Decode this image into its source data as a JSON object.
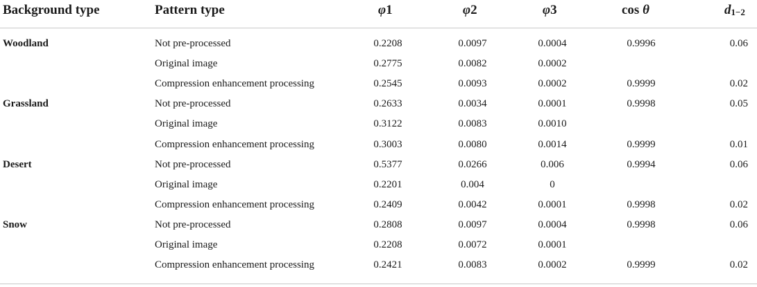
{
  "headers": {
    "background_type": "Background type",
    "pattern_type": "Pattern type",
    "phi_symbol": "φ",
    "phi1_index": "1",
    "phi2_index": "2",
    "phi3_index": "3",
    "cos_text": "cos",
    "theta_symbol": "θ",
    "d_symbol": "d",
    "d_subscript": "1−2"
  },
  "rows": [
    {
      "background": "Woodland",
      "pattern": "Not pre-processed",
      "phi1": "0.2208",
      "phi2": "0.0097",
      "phi3": "0.0004",
      "cos_theta": "0.9996",
      "d12": "0.06"
    },
    {
      "background": "",
      "pattern": "Original image",
      "phi1": "0.2775",
      "phi2": "0.0082",
      "phi3": "0.0002",
      "cos_theta": "",
      "d12": ""
    },
    {
      "background": "",
      "pattern": "Compression enhancement processing",
      "phi1": "0.2545",
      "phi2": "0.0093",
      "phi3": "0.0002",
      "cos_theta": "0.9999",
      "d12": "0.02"
    },
    {
      "background": "Grassland",
      "pattern": "Not pre-processed",
      "phi1": "0.2633",
      "phi2": "0.0034",
      "phi3": "0.0001",
      "cos_theta": "0.9998",
      "d12": "0.05"
    },
    {
      "background": "",
      "pattern": "Original image",
      "phi1": "0.3122",
      "phi2": "0.0083",
      "phi3": "0.0010",
      "cos_theta": "",
      "d12": ""
    },
    {
      "background": "",
      "pattern": "Compression enhancement processing",
      "phi1": "0.3003",
      "phi2": "0.0080",
      "phi3": "0.0014",
      "cos_theta": "0.9999",
      "d12": "0.01"
    },
    {
      "background": "Desert",
      "pattern": "Not pre-processed",
      "phi1": "0.5377",
      "phi2": "0.0266",
      "phi3": "0.006",
      "cos_theta": "0.9994",
      "d12": "0.06"
    },
    {
      "background": "",
      "pattern": "Original image",
      "phi1": "0.2201",
      "phi2": "0.004",
      "phi3": "0",
      "cos_theta": "",
      "d12": ""
    },
    {
      "background": "",
      "pattern": "Compression enhancement processing",
      "phi1": "0.2409",
      "phi2": "0.0042",
      "phi3": "0.0001",
      "cos_theta": "0.9998",
      "d12": "0.02"
    },
    {
      "background": "Snow",
      "pattern": "Not pre-processed",
      "phi1": "0.2808",
      "phi2": "0.0097",
      "phi3": "0.0004",
      "cos_theta": "0.9998",
      "d12": "0.06"
    },
    {
      "background": "",
      "pattern": "Original image",
      "phi1": "0.2208",
      "phi2": "0.0072",
      "phi3": "0.0001",
      "cos_theta": "",
      "d12": ""
    },
    {
      "background": "",
      "pattern": "Compression enhancement processing",
      "phi1": "0.2421",
      "phi2": "0.0083",
      "phi3": "0.0002",
      "cos_theta": "0.9999",
      "d12": "0.02"
    }
  ]
}
